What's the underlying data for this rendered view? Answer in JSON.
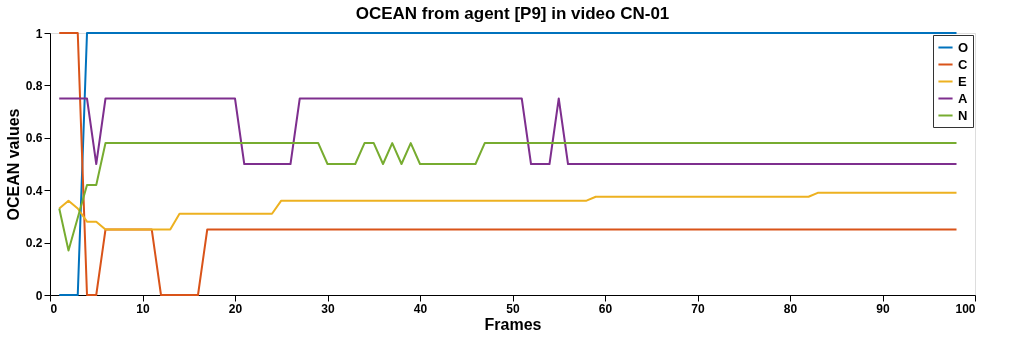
{
  "chart_data": {
    "type": "line",
    "title": "OCEAN from agent [P9] in video CN-01",
    "xlabel": "Frames",
    "ylabel": "OCEAN values",
    "xlim": [
      0,
      100
    ],
    "xticks": [
      0,
      10,
      20,
      30,
      40,
      50,
      60,
      70,
      80,
      90,
      100
    ],
    "ylim": [
      0,
      1
    ],
    "yticks": [
      0,
      0.2,
      0.4,
      0.6,
      0.8,
      1
    ],
    "grid": false,
    "legend": "top right",
    "marker": "none",
    "line_style": "solid",
    "series": [
      {
        "name": "O",
        "color": "#0072bd",
        "x": [
          1,
          3,
          4,
          98
        ],
        "values": [
          0,
          0,
          1,
          1
        ]
      },
      {
        "name": "C",
        "color": "#d95319",
        "x": [
          1,
          3,
          4,
          5,
          6,
          11,
          12,
          16,
          17,
          98
        ],
        "values": [
          1,
          1,
          0,
          0,
          0.25,
          0.25,
          0,
          0,
          0.25,
          0.25
        ]
      },
      {
        "name": "E",
        "color": "#edb120",
        "x": [
          1,
          2,
          3,
          4,
          5,
          6,
          13,
          14,
          24,
          25,
          58,
          59,
          82,
          83,
          98
        ],
        "values": [
          0.33,
          0.36,
          0.33,
          0.28,
          0.28,
          0.25,
          0.25,
          0.31,
          0.31,
          0.36,
          0.36,
          0.375,
          0.375,
          0.39,
          0.39
        ]
      },
      {
        "name": "A",
        "color": "#7e2f8e",
        "x": [
          1,
          4,
          5,
          6,
          20,
          21,
          26,
          27,
          51,
          52,
          54,
          55,
          56,
          98
        ],
        "values": [
          0.75,
          0.75,
          0.5,
          0.75,
          0.75,
          0.5,
          0.5,
          0.75,
          0.75,
          0.5,
          0.5,
          0.75,
          0.5,
          0.5
        ]
      },
      {
        "name": "N",
        "color": "#77ac30",
        "x": [
          1,
          2,
          4,
          5,
          6,
          29,
          30,
          33,
          34,
          35,
          36,
          37,
          38,
          39,
          40,
          46,
          47,
          98
        ],
        "values": [
          0.33,
          0.17,
          0.42,
          0.42,
          0.58,
          0.58,
          0.5,
          0.5,
          0.58,
          0.58,
          0.5,
          0.58,
          0.5,
          0.58,
          0.5,
          0.5,
          0.58,
          0.58
        ]
      }
    ]
  }
}
